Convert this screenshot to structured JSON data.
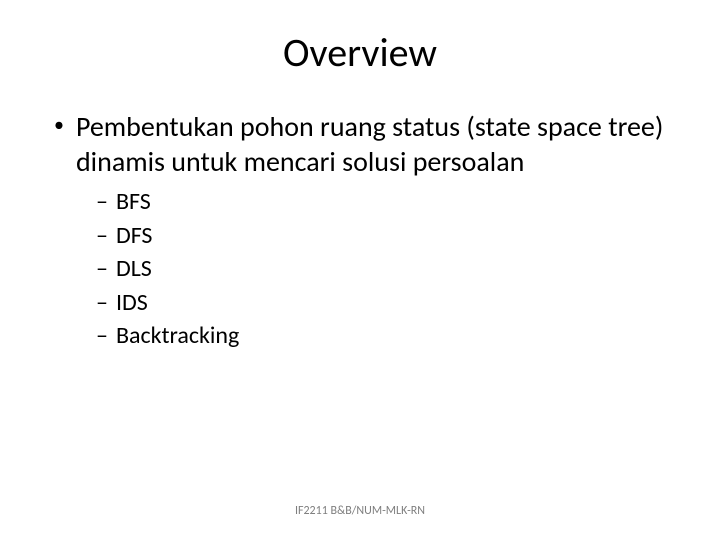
{
  "slide": {
    "title": "Overview",
    "main_bullet": "Pembentukan pohon ruang status (state space tree) dinamis untuk mencari solusi persoalan",
    "sub_bullets": [
      "BFS",
      "DFS",
      "DLS",
      "IDS",
      "Backtracking"
    ],
    "footer": "IF2211 B&B/NUM-MLK-RN"
  },
  "style": {
    "title_fontsize": 40,
    "body_fontsize": 28,
    "sub_fontsize": 24,
    "footer_fontsize": 12,
    "text_color": "#000000",
    "footer_color": "#7f7f7f",
    "background_color": "#ffffff"
  }
}
